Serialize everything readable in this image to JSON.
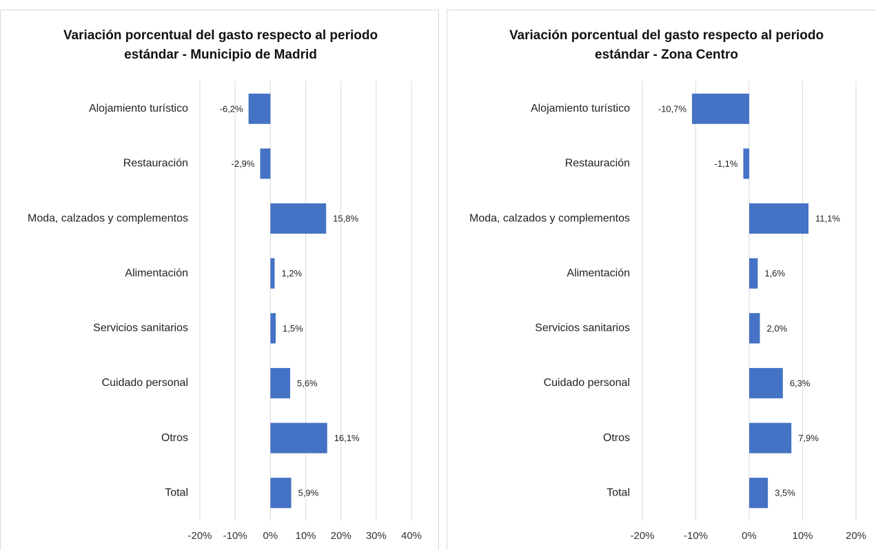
{
  "chart_data": [
    {
      "type": "barh",
      "title": [
        "Variación porcentual del gasto respecto al periodo",
        "estándar - Municipio de Madrid"
      ],
      "categories": [
        "Alojamiento turístico",
        "Restauración",
        "Moda, calzados y complementos",
        "Alimentación",
        "Servicios sanitarios",
        "Cuidado personal",
        "Otros",
        "Total"
      ],
      "values": [
        -6.2,
        -2.9,
        15.8,
        1.2,
        1.5,
        5.6,
        16.1,
        5.9
      ],
      "value_labels": [
        "-6,2%",
        "-2,9%",
        "15,8%",
        "1,2%",
        "1,5%",
        "5,6%",
        "16,1%",
        "5,9%"
      ],
      "color": "#4472c4",
      "xlim": [
        -20,
        40
      ],
      "xticks": [
        {
          "value": -20,
          "label": "-20%"
        },
        {
          "value": -10,
          "label": "-10%"
        },
        {
          "value": 0,
          "label": "0%"
        },
        {
          "value": 10,
          "label": "10%"
        },
        {
          "value": 20,
          "label": "20%"
        },
        {
          "value": 30,
          "label": "30%"
        },
        {
          "value": 40,
          "label": "40%"
        }
      ],
      "grid": true
    },
    {
      "type": "barh",
      "title": [
        "Variación porcentual del gasto respecto al periodo",
        "estándar - Zona Centro"
      ],
      "categories": [
        "Alojamiento turístico",
        "Restauración",
        "Moda, calzados y complementos",
        "Alimentación",
        "Servicios sanitarios",
        "Cuidado personal",
        "Otros",
        "Total"
      ],
      "values": [
        -10.7,
        -1.1,
        11.1,
        1.6,
        2.0,
        6.3,
        7.9,
        3.5
      ],
      "value_labels": [
        "-10,7%",
        "-1,1%",
        "11,1%",
        "1,6%",
        "2,0%",
        "6,3%",
        "7,9%",
        "3,5%"
      ],
      "color": "#4472c4",
      "xlim": [
        -20,
        20
      ],
      "xticks": [
        {
          "value": -20,
          "label": "-20%"
        },
        {
          "value": -10,
          "label": "-10%"
        },
        {
          "value": 0,
          "label": "0%"
        },
        {
          "value": 10,
          "label": "10%"
        },
        {
          "value": 20,
          "label": "20%"
        }
      ],
      "grid": true
    }
  ]
}
